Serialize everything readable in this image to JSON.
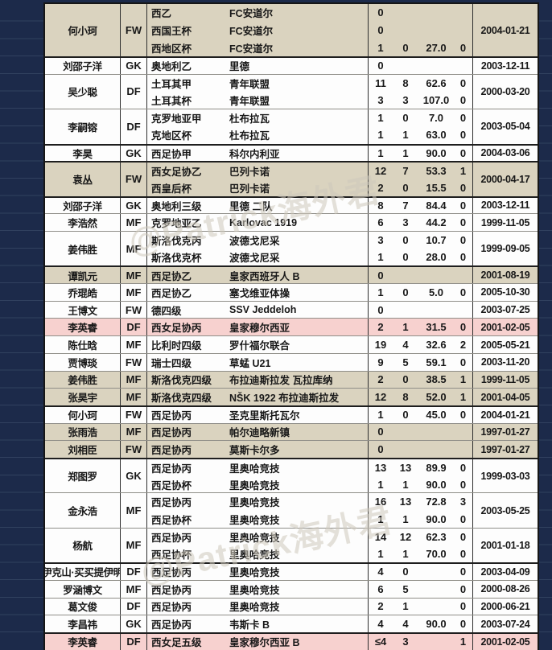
{
  "watermark": {
    "text": "@Patrick海外君"
  },
  "colors": {
    "page_background": "#1c2a4a",
    "row_white": "#fdfdfd",
    "row_beige": "#dad3bf",
    "row_pink": "#f7d1cf",
    "border_dark": "#1e1e1e",
    "text": "#181818",
    "watermark": "#cfc9bc"
  },
  "chart_data": {
    "type": "table",
    "grid": true,
    "groups": [
      {
        "player": "何小珂",
        "position": "FW",
        "tone": "beige",
        "sep": false,
        "date": "2004-01-21",
        "rows": [
          {
            "league": "西乙",
            "club": "FC安道尔",
            "stats": [
              "0",
              "",
              "",
              ""
            ]
          },
          {
            "league": "西国王杯",
            "club": "FC安道尔",
            "stats": [
              "0",
              "",
              "",
              ""
            ]
          },
          {
            "league": "西地区杯",
            "club": "FC安道尔",
            "stats": [
              "1",
              "0",
              "27.0",
              "0"
            ]
          }
        ]
      },
      {
        "player": "刘邵子洋",
        "position": "GK",
        "tone": "white",
        "sep": true,
        "date": "2003-12-11",
        "rows": [
          {
            "league": "奥地利乙",
            "club": "里德",
            "stats": [
              "0",
              "",
              "",
              ""
            ]
          }
        ]
      },
      {
        "player": "吴少聪",
        "position": "DF",
        "tone": "white",
        "sep": false,
        "date": "2000-03-20",
        "rows": [
          {
            "league": "土耳其甲",
            "club": "青年联盟",
            "stats": [
              "11",
              "8",
              "62.6",
              "0"
            ]
          },
          {
            "league": "土耳其杯",
            "club": "青年联盟",
            "stats": [
              "3",
              "3",
              "107.0",
              "0"
            ]
          }
        ]
      },
      {
        "player": "李嗣镕",
        "position": "DF",
        "tone": "white",
        "sep": false,
        "date": "2003-05-04",
        "rows": [
          {
            "league": "克罗地亚甲",
            "club": "杜布拉瓦",
            "stats": [
              "1",
              "0",
              "7.0",
              "0"
            ]
          },
          {
            "league": "克地区杯",
            "club": "杜布拉瓦",
            "stats": [
              "1",
              "1",
              "63.0",
              "0"
            ]
          }
        ]
      },
      {
        "player": "李昊",
        "position": "GK",
        "tone": "white",
        "sep": true,
        "date": "2004-03-06",
        "rows": [
          {
            "league": "西足协甲",
            "club": "科尔内利亚",
            "stats": [
              "1",
              "1",
              "90.0",
              "0"
            ]
          }
        ]
      },
      {
        "player": "袁丛",
        "position": "FW",
        "tone": "beige",
        "sep": true,
        "date": "2000-04-17",
        "rows": [
          {
            "league": "西女足协乙",
            "club": "巴列卡诺",
            "stats": [
              "12",
              "7",
              "53.3",
              "1"
            ]
          },
          {
            "league": "西皇后杯",
            "club": "巴列卡诺",
            "stats": [
              "2",
              "0",
              "15.5",
              "0"
            ]
          }
        ]
      },
      {
        "player": "刘邵子洋",
        "position": "GK",
        "tone": "white",
        "sep": true,
        "date": "2003-12-11",
        "rows": [
          {
            "league": "奥地利三级",
            "club": "里德 二队",
            "stats": [
              "8",
              "7",
              "84.4",
              "0"
            ]
          }
        ]
      },
      {
        "player": "李浩然",
        "position": "MF",
        "tone": "white",
        "sep": false,
        "date": "1999-11-05",
        "rows": [
          {
            "league": "克罗地亚乙",
            "club": "Karlovac 1919",
            "stats": [
              "6",
              "3",
              "44.2",
              "0"
            ]
          }
        ]
      },
      {
        "player": "姜伟胜",
        "position": "MF",
        "tone": "white",
        "sep": false,
        "date": "1999-09-05",
        "rows": [
          {
            "league": "斯洛伐克丙",
            "club": "波德戈尼采",
            "stats": [
              "3",
              "0",
              "10.7",
              "0"
            ]
          },
          {
            "league": "斯洛伐克杯",
            "club": "波德戈尼采",
            "stats": [
              "1",
              "0",
              "28.0",
              "0"
            ]
          }
        ]
      },
      {
        "player": "谭凯元",
        "position": "MF",
        "tone": "beige",
        "sep": true,
        "date": "2001-08-19",
        "rows": [
          {
            "league": "西足协乙",
            "club": "皇家西班牙人 B",
            "stats": [
              "0",
              "",
              "",
              ""
            ]
          }
        ]
      },
      {
        "player": "乔琨皓",
        "position": "MF",
        "tone": "white",
        "sep": false,
        "date": "2005-10-30",
        "rows": [
          {
            "league": "西足协乙",
            "club": "塞戈维亚体操",
            "stats": [
              "1",
              "0",
              "5.0",
              "0"
            ]
          }
        ]
      },
      {
        "player": "王博文",
        "position": "FW",
        "tone": "white",
        "sep": false,
        "date": "2003-07-25",
        "rows": [
          {
            "league": "德四级",
            "club": "SSV Jeddeloh",
            "stats": [
              "0",
              "",
              "",
              ""
            ]
          }
        ]
      },
      {
        "player": "李英睿",
        "position": "DF",
        "tone": "pink",
        "sep": false,
        "date": "2001-02-05",
        "rows": [
          {
            "league": "西女足协丙",
            "club": "皇家穆尔西亚",
            "stats": [
              "2",
              "1",
              "31.5",
              "0"
            ]
          }
        ]
      },
      {
        "player": "陈仕晗",
        "position": "MF",
        "tone": "white",
        "sep": false,
        "date": "2005-05-21",
        "rows": [
          {
            "league": "比利时四级",
            "club": "罗什福尔联合",
            "stats": [
              "19",
              "4",
              "32.6",
              "2"
            ]
          }
        ]
      },
      {
        "player": "贾博琰",
        "position": "FW",
        "tone": "white",
        "sep": false,
        "date": "2003-11-20",
        "rows": [
          {
            "league": "瑞士四级",
            "club": "草蜢 U21",
            "stats": [
              "9",
              "5",
              "59.1",
              "0"
            ]
          }
        ]
      },
      {
        "player": "姜伟胜",
        "position": "MF",
        "tone": "beige",
        "sep": false,
        "date": "1999-11-05",
        "rows": [
          {
            "league": "斯洛伐克四级",
            "club": "布拉迪斯拉发 瓦拉库纳",
            "stats": [
              "2",
              "0",
              "38.5",
              "1"
            ]
          }
        ]
      },
      {
        "player": "张昊宇",
        "position": "MF",
        "tone": "beige",
        "sep": false,
        "date": "2001-04-05",
        "rows": [
          {
            "league": "斯洛伐克四级",
            "club": "NŠK 1922 布拉迪斯拉发",
            "stats": [
              "12",
              "8",
              "52.0",
              "1"
            ]
          }
        ]
      },
      {
        "player": "何小珂",
        "position": "FW",
        "tone": "white",
        "sep": true,
        "date": "2004-01-21",
        "rows": [
          {
            "league": "西足协丙",
            "club": "圣克里斯托瓦尔",
            "stats": [
              "1",
              "0",
              "45.0",
              "0"
            ]
          }
        ]
      },
      {
        "player": "张雨浩",
        "position": "MF",
        "tone": "beige",
        "sep": false,
        "date": "1997-01-27",
        "rows": [
          {
            "league": "西足协丙",
            "club": "帕尔迪略新镇",
            "stats": [
              "0",
              "",
              "",
              ""
            ]
          }
        ]
      },
      {
        "player": "刘相臣",
        "position": "FW",
        "tone": "beige",
        "sep": false,
        "date": "1997-01-27",
        "rows": [
          {
            "league": "西足协丙",
            "club": "莫斯卡尔多",
            "stats": [
              "0",
              "",
              "",
              ""
            ]
          }
        ]
      },
      {
        "player": "郑图罗",
        "position": "GK",
        "tone": "white",
        "sep": true,
        "date": "1999-03-03",
        "rows": [
          {
            "league": "西足协丙",
            "club": "里奥哈竞技",
            "stats": [
              "13",
              "13",
              "89.9",
              "0"
            ]
          },
          {
            "league": "西足协杯",
            "club": "里奥哈竞技",
            "stats": [
              "1",
              "1",
              "90.0",
              "0"
            ]
          }
        ]
      },
      {
        "player": "金永浩",
        "position": "MF",
        "tone": "white",
        "sep": false,
        "date": "2003-05-25",
        "rows": [
          {
            "league": "西足协丙",
            "club": "里奥哈竞技",
            "stats": [
              "16",
              "13",
              "72.8",
              "3"
            ]
          },
          {
            "league": "西足协杯",
            "club": "里奥哈竞技",
            "stats": [
              "1",
              "1",
              "90.0",
              "0"
            ]
          }
        ]
      },
      {
        "player": "杨航",
        "position": "MF",
        "tone": "white",
        "sep": false,
        "date": "2001-01-18",
        "rows": [
          {
            "league": "西足协丙",
            "club": "里奥哈竞技",
            "stats": [
              "14",
              "12",
              "62.3",
              "0"
            ]
          },
          {
            "league": "西足协杯",
            "club": "里奥哈竞技",
            "stats": [
              "1",
              "1",
              "70.0",
              "0"
            ]
          }
        ]
      },
      {
        "player": "伊克山·买买提伊明",
        "position": "DF",
        "tone": "white",
        "sep": true,
        "date": "2003-04-09",
        "rows": [
          {
            "league": "西足协丙",
            "club": "里奥哈竞技",
            "stats": [
              "4",
              "0",
              "",
              "0"
            ]
          }
        ]
      },
      {
        "player": "罗涵博文",
        "position": "MF",
        "tone": "white",
        "sep": false,
        "date": "2000-08-26",
        "rows": [
          {
            "league": "西足协丙",
            "club": "里奥哈竞技",
            "stats": [
              "6",
              "5",
              "",
              "0"
            ]
          }
        ]
      },
      {
        "player": "葛文俊",
        "position": "DF",
        "tone": "white",
        "sep": false,
        "date": "2000-06-21",
        "rows": [
          {
            "league": "西足协丙",
            "club": "里奥哈竞技",
            "stats": [
              "2",
              "1",
              "",
              "0"
            ]
          }
        ]
      },
      {
        "player": "李昌祎",
        "position": "GK",
        "tone": "white",
        "sep": false,
        "date": "2003-07-24",
        "rows": [
          {
            "league": "西足协丙",
            "club": "韦斯卡 B",
            "stats": [
              "4",
              "4",
              "90.0",
              "0"
            ]
          }
        ]
      },
      {
        "player": "李英睿",
        "position": "DF",
        "tone": "pink",
        "sep": true,
        "date": "2001-02-05",
        "rows": [
          {
            "league": "西女足五级",
            "club": "皇家穆尔西亚 B",
            "stats": [
              "≤4",
              "3",
              "",
              "1"
            ]
          }
        ]
      }
    ]
  }
}
